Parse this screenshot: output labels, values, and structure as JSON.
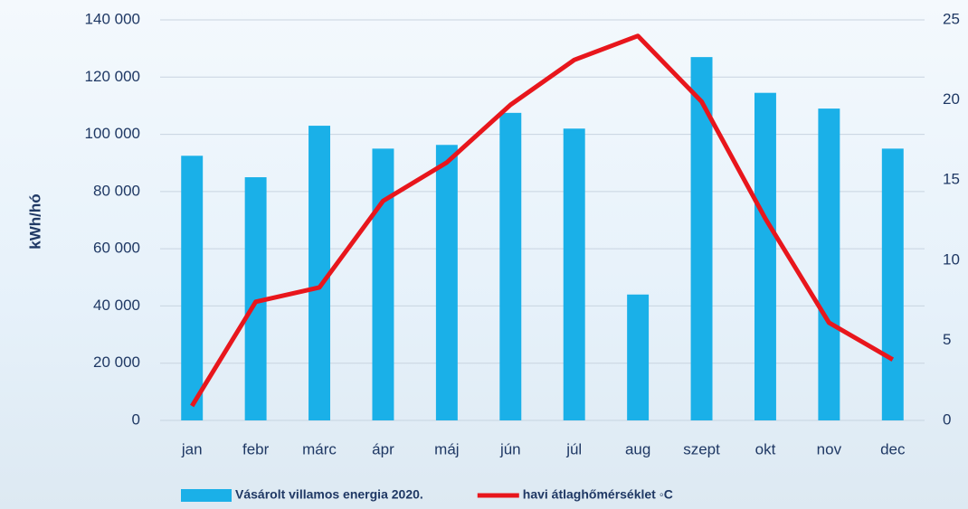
{
  "chart_data": {
    "type": "bar-line",
    "y_label": "kWh/hó",
    "categories": [
      "jan",
      "febr",
      "márc",
      "ápr",
      "máj",
      "jún",
      "júl",
      "aug",
      "szept",
      "okt",
      "nov",
      "dec"
    ],
    "series": [
      {
        "name": "Vásárolt villamos energia 2020.",
        "type": "bar",
        "color": "#1ab0e8",
        "values": [
          92500,
          85000,
          103000,
          95000,
          96300,
          107500,
          102000,
          44000,
          127000,
          114500,
          109000,
          95000
        ]
      },
      {
        "name": "havi átlaghőmérséklet ◦C",
        "type": "line",
        "color": "#e8161c",
        "axis": "y2",
        "values": [
          0.9,
          7.4,
          8.3,
          13.7,
          16.1,
          19.7,
          22.5,
          24.0,
          19.9,
          12.6,
          6.1,
          3.8
        ]
      }
    ],
    "ylim": [
      0,
      140000
    ],
    "yticks": [
      0,
      {
        "value": 20000,
        "label": "20 000"
      },
      {
        "value": 40000,
        "label": "40 000"
      },
      {
        "value": 60000,
        "label": "60 000"
      },
      {
        "value": 80000,
        "label": "80 000"
      },
      {
        "value": 100000,
        "label": "100 000"
      },
      {
        "value": 120000,
        "label": "120 000"
      },
      {
        "value": 140000,
        "label": "140 000"
      }
    ],
    "y2lim": [
      0,
      25
    ],
    "y2ticks": [
      0,
      5,
      10,
      15,
      20,
      25
    ],
    "grid": true,
    "legend": "bottom"
  }
}
